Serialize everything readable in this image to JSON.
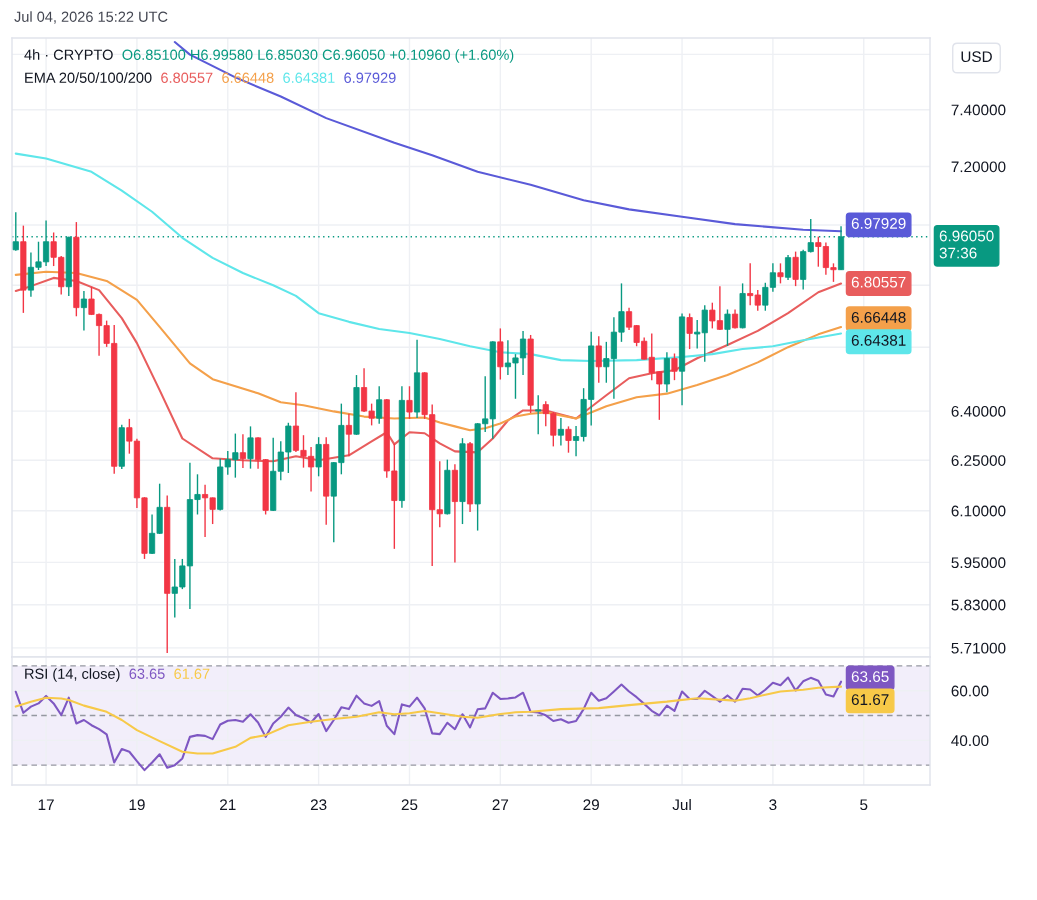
{
  "chart_data": [
    {
      "type": "candlestick",
      "title": "4h · CRYPTO",
      "subtitle": "O6.85100 H6.99580 L6.85030 C6.96050 +0.10960 (+1.60%)",
      "ylabel": "USD",
      "annotations": [
        "Jul 04, 2026 15:22 UTC",
        "EMA 20/50/100/200",
        "37:36"
      ],
      "x": [
        "2026-06-16T08:00",
        "2026-06-16T12:00",
        "2026-06-16T16:00",
        "2026-06-16T20:00",
        "2026-06-17T00:00",
        "2026-06-17T04:00",
        "2026-06-17T08:00",
        "2026-06-17T12:00",
        "2026-06-17T16:00",
        "2026-06-17T20:00",
        "2026-06-18T00:00",
        "2026-06-18T04:00",
        "2026-06-18T08:00",
        "2026-06-18T12:00",
        "2026-06-18T16:00",
        "2026-06-18T20:00",
        "2026-06-19T00:00",
        "2026-06-19T04:00",
        "2026-06-19T08:00",
        "2026-06-19T12:00",
        "2026-06-19T16:00",
        "2026-06-19T20:00",
        "2026-06-20T00:00",
        "2026-06-20T04:00",
        "2026-06-20T08:00",
        "2026-06-20T12:00",
        "2026-06-20T16:00",
        "2026-06-20T20:00",
        "2026-06-21T00:00",
        "2026-06-21T04:00",
        "2026-06-21T08:00",
        "2026-06-21T12:00",
        "2026-06-21T16:00",
        "2026-06-21T20:00",
        "2026-06-22T00:00",
        "2026-06-22T04:00",
        "2026-06-22T08:00",
        "2026-06-22T12:00",
        "2026-06-22T16:00",
        "2026-06-22T20:00",
        "2026-06-23T00:00",
        "2026-06-23T04:00",
        "2026-06-23T08:00",
        "2026-06-23T12:00",
        "2026-06-23T16:00",
        "2026-06-23T20:00",
        "2026-06-24T00:00",
        "2026-06-24T04:00",
        "2026-06-24T08:00",
        "2026-06-24T12:00",
        "2026-06-24T16:00",
        "2026-06-24T20:00",
        "2026-06-25T00:00",
        "2026-06-25T04:00",
        "2026-06-25T08:00",
        "2026-06-25T12:00",
        "2026-06-25T16:00",
        "2026-06-25T20:00",
        "2026-06-26T00:00",
        "2026-06-26T04:00",
        "2026-06-26T08:00",
        "2026-06-26T12:00",
        "2026-06-26T16:00",
        "2026-06-26T20:00",
        "2026-06-27T00:00",
        "2026-06-27T04:00",
        "2026-06-27T08:00",
        "2026-06-27T12:00",
        "2026-06-27T16:00",
        "2026-06-27T20:00",
        "2026-06-28T00:00",
        "2026-06-28T04:00",
        "2026-06-28T08:00",
        "2026-06-28T12:00",
        "2026-06-28T16:00",
        "2026-06-28T20:00",
        "2026-06-29T00:00",
        "2026-06-29T04:00",
        "2026-06-29T08:00",
        "2026-06-29T12:00",
        "2026-06-29T16:00",
        "2026-06-29T20:00",
        "2026-06-30T00:00",
        "2026-06-30T04:00",
        "2026-06-30T08:00",
        "2026-06-30T12:00",
        "2026-06-30T16:00",
        "2026-06-30T20:00",
        "2026-07-01T00:00",
        "2026-07-01T04:00",
        "2026-07-01T08:00",
        "2026-07-01T12:00",
        "2026-07-01T16:00",
        "2026-07-01T20:00",
        "2026-07-02T00:00",
        "2026-07-02T04:00",
        "2026-07-02T08:00",
        "2026-07-02T12:00",
        "2026-07-02T16:00",
        "2026-07-02T20:00",
        "2026-07-03T00:00",
        "2026-07-03T04:00",
        "2026-07-03T08:00",
        "2026-07-03T12:00",
        "2026-07-03T16:00",
        "2026-07-03T20:00",
        "2026-07-04T00:00",
        "2026-07-04T04:00",
        "2026-07-04T08:00",
        "2026-07-04T12:00"
      ],
      "ohlc": [
        [
          6.917,
          7.043,
          6.914,
          6.944
        ],
        [
          6.944,
          6.998,
          6.71,
          6.784
        ],
        [
          6.784,
          6.908,
          6.762,
          6.859
        ],
        [
          6.859,
          6.944,
          6.85,
          6.877
        ],
        [
          6.877,
          7.015,
          6.863,
          6.944
        ],
        [
          6.944,
          6.975,
          6.863,
          6.892
        ],
        [
          6.892,
          6.896,
          6.77,
          6.795
        ],
        [
          6.795,
          6.961,
          6.765,
          6.959
        ],
        [
          6.959,
          7.01,
          6.699,
          6.727
        ],
        [
          6.727,
          6.781,
          6.653,
          6.755
        ],
        [
          6.755,
          6.795,
          6.703,
          6.705
        ],
        [
          6.705,
          6.708,
          6.573,
          6.669
        ],
        [
          6.669,
          6.685,
          6.601,
          6.612
        ],
        [
          6.612,
          6.671,
          6.21,
          6.232
        ],
        [
          6.232,
          6.358,
          6.224,
          6.349
        ],
        [
          6.349,
          6.376,
          6.27,
          6.308
        ],
        [
          6.308,
          6.315,
          6.108,
          6.138
        ],
        [
          6.138,
          6.14,
          5.96,
          5.976
        ],
        [
          5.976,
          6.089,
          5.974,
          6.034
        ],
        [
          6.034,
          6.18,
          6.032,
          6.11
        ],
        [
          6.11,
          6.145,
          5.696,
          5.862
        ],
        [
          5.862,
          5.96,
          5.794,
          5.88
        ],
        [
          5.88,
          5.96,
          5.874,
          5.94
        ],
        [
          5.94,
          6.243,
          5.818,
          6.133
        ],
        [
          6.133,
          6.208,
          6.089,
          6.148
        ],
        [
          6.148,
          6.177,
          6.023,
          6.138
        ],
        [
          6.138,
          6.139,
          6.061,
          6.104
        ],
        [
          6.104,
          6.255,
          6.101,
          6.23
        ],
        [
          6.23,
          6.278,
          6.207,
          6.252
        ],
        [
          6.252,
          6.331,
          6.198,
          6.273
        ],
        [
          6.273,
          6.329,
          6.227,
          6.255
        ],
        [
          6.255,
          6.353,
          6.225,
          6.318
        ],
        [
          6.318,
          6.32,
          6.225,
          6.252
        ],
        [
          6.252,
          6.254,
          6.089,
          6.101
        ],
        [
          6.101,
          6.318,
          6.099,
          6.217
        ],
        [
          6.217,
          6.308,
          6.19,
          6.275
        ],
        [
          6.275,
          6.364,
          6.212,
          6.354
        ],
        [
          6.354,
          6.458,
          6.275,
          6.28
        ],
        [
          6.28,
          6.326,
          6.228,
          6.262
        ],
        [
          6.262,
          6.29,
          6.157,
          6.23
        ],
        [
          6.23,
          6.32,
          6.202,
          6.298
        ],
        [
          6.298,
          6.32,
          6.059,
          6.143
        ],
        [
          6.143,
          6.245,
          6.008,
          6.243
        ],
        [
          6.243,
          6.423,
          6.208,
          6.356
        ],
        [
          6.356,
          6.392,
          6.262,
          6.329
        ],
        [
          6.329,
          6.512,
          6.327,
          6.473
        ],
        [
          6.473,
          6.533,
          6.397,
          6.4
        ],
        [
          6.4,
          6.423,
          6.356,
          6.378
        ],
        [
          6.378,
          6.477,
          6.361,
          6.435
        ],
        [
          6.435,
          6.437,
          6.198,
          6.218
        ],
        [
          6.218,
          6.3,
          5.989,
          6.13
        ],
        [
          6.13,
          6.477,
          6.109,
          6.433
        ],
        [
          6.433,
          6.477,
          6.376,
          6.397
        ],
        [
          6.397,
          6.624,
          6.379,
          6.519
        ],
        [
          6.519,
          6.521,
          6.376,
          6.389
        ],
        [
          6.389,
          6.42,
          5.94,
          6.103
        ],
        [
          6.103,
          6.247,
          6.052,
          6.091
        ],
        [
          6.091,
          6.252,
          6.089,
          6.22
        ],
        [
          6.22,
          6.238,
          5.95,
          6.127
        ],
        [
          6.127,
          6.317,
          6.061,
          6.3
        ],
        [
          6.3,
          6.305,
          6.096,
          6.12
        ],
        [
          6.12,
          6.363,
          6.042,
          6.361
        ],
        [
          6.361,
          6.508,
          6.336,
          6.376
        ],
        [
          6.376,
          6.619,
          6.315,
          6.617
        ],
        [
          6.617,
          6.66,
          6.498,
          6.538
        ],
        [
          6.538,
          6.622,
          6.512,
          6.55
        ],
        [
          6.55,
          6.578,
          6.438,
          6.566
        ],
        [
          6.566,
          6.652,
          6.512,
          6.626
        ],
        [
          6.626,
          6.639,
          6.394,
          6.418
        ],
        [
          6.4,
          6.449,
          6.329,
          6.404
        ],
        [
          6.42,
          6.43,
          6.353,
          6.392
        ],
        [
          6.392,
          6.397,
          6.292,
          6.326
        ],
        [
          6.326,
          6.379,
          6.295,
          6.344
        ],
        [
          6.344,
          6.353,
          6.273,
          6.31
        ],
        [
          6.31,
          6.354,
          6.262,
          6.322
        ],
        [
          6.322,
          6.471,
          6.307,
          6.436
        ],
        [
          6.436,
          6.649,
          6.356,
          6.604
        ],
        [
          6.604,
          6.635,
          6.488,
          6.538
        ],
        [
          6.538,
          6.617,
          6.488,
          6.564
        ],
        [
          6.564,
          6.696,
          6.438,
          6.648
        ],
        [
          6.648,
          6.806,
          6.617,
          6.714
        ],
        [
          6.714,
          6.727,
          6.655,
          6.664
        ],
        [
          6.669,
          6.671,
          6.603,
          6.615
        ],
        [
          6.619,
          6.631,
          6.561,
          6.562
        ],
        [
          6.568,
          6.644,
          6.496,
          6.519
        ],
        [
          6.522,
          6.524,
          6.373,
          6.484
        ],
        [
          6.484,
          6.584,
          6.458,
          6.564
        ],
        [
          6.564,
          6.58,
          6.496,
          6.524
        ],
        [
          6.524,
          6.708,
          6.418,
          6.697
        ],
        [
          6.695,
          6.708,
          6.594,
          6.644
        ],
        [
          6.642,
          6.687,
          6.596,
          6.648
        ],
        [
          6.646,
          6.735,
          6.554,
          6.719
        ],
        [
          6.719,
          6.743,
          6.66,
          6.684
        ],
        [
          6.685,
          6.797,
          6.655,
          6.657
        ],
        [
          6.657,
          6.721,
          6.604,
          6.706
        ],
        [
          6.706,
          6.721,
          6.66,
          6.662
        ],
        [
          6.662,
          6.806,
          6.66,
          6.773
        ],
        [
          6.773,
          6.872,
          6.735,
          6.766
        ],
        [
          6.768,
          6.784,
          6.717,
          6.735
        ],
        [
          6.735,
          6.808,
          6.717,
          6.793
        ],
        [
          6.793,
          6.872,
          6.779,
          6.841
        ],
        [
          6.841,
          6.872,
          6.806,
          6.828
        ],
        [
          6.826,
          6.9,
          6.817,
          6.891
        ],
        [
          6.892,
          6.911,
          6.797,
          6.819
        ],
        [
          6.819,
          6.917,
          6.786,
          6.911
        ],
        [
          6.911,
          7.02,
          6.908,
          6.941
        ],
        [
          6.941,
          6.961,
          6.861,
          6.928
        ],
        [
          6.928,
          6.941,
          6.834,
          6.858
        ],
        [
          6.858,
          6.872,
          6.811,
          6.851
        ],
        [
          6.851,
          6.9958,
          6.8503,
          6.9605
        ]
      ],
      "colors": [
        "#089981",
        "#f23645",
        "#089981",
        "#089981",
        "#089981",
        "#f23645",
        "#f23645",
        "#089981",
        "#f23645",
        "#089981",
        "#f23645",
        "#f23645",
        "#f23645",
        "#f23645",
        "#089981",
        "#f23645",
        "#f23645",
        "#f23645",
        "#089981",
        "#089981",
        "#f23645",
        "#089981",
        "#089981",
        "#089981",
        "#089981",
        "#f23645",
        "#f23645",
        "#089981",
        "#089981",
        "#089981",
        "#f23645",
        "#089981",
        "#f23645",
        "#f23645",
        "#089981",
        "#089981",
        "#089981",
        "#f23645",
        "#f23645",
        "#f23645",
        "#089981",
        "#f23645",
        "#089981",
        "#089981",
        "#f23645",
        "#089981",
        "#f23645",
        "#f23645",
        "#089981",
        "#f23645",
        "#f23645",
        "#089981",
        "#f23645",
        "#089981",
        "#f23645",
        "#f23645",
        "#f23645",
        "#089981",
        "#f23645",
        "#089981",
        "#f23645",
        "#089981",
        "#089981",
        "#089981",
        "#f23645",
        "#089981",
        "#089981",
        "#089981",
        "#f23645",
        "#089981",
        "#f23645",
        "#f23645",
        "#089981",
        "#f23645",
        "#089981",
        "#089981",
        "#089981",
        "#f23645",
        "#089981",
        "#089981",
        "#089981",
        "#f23645",
        "#f23645",
        "#f23645",
        "#f23645",
        "#f23645",
        "#089981",
        "#f23645",
        "#089981",
        "#f23645",
        "#089981",
        "#089981",
        "#f23645",
        "#f23645",
        "#089981",
        "#f23645",
        "#089981",
        "#f23645",
        "#f23645",
        "#089981",
        "#089981",
        "#f23645",
        "#089981",
        "#f23645",
        "#089981",
        "#089981",
        "#f23645",
        "#f23645",
        "#f23645",
        "#089981"
      ],
      "series": [
        {
          "type": "line",
          "color": "#e85d5d",
          "x": [
            "2026-06-16T08:00",
            "2026-06-16T16:00",
            "2026-06-17T04:00",
            "2026-06-17T16:00",
            "2026-06-18T04:00",
            "2026-06-18T16:00",
            "2026-06-19T00:00",
            "2026-06-19T12:00",
            "2026-06-20T00:00",
            "2026-06-20T16:00",
            "2026-06-21T08:00",
            "2026-06-22T00:00",
            "2026-06-22T12:00",
            "2026-06-23T00:00",
            "2026-06-23T16:00",
            "2026-06-24T04:00",
            "2026-06-24T12:00",
            "2026-06-24T16:00",
            "2026-06-25T00:00",
            "2026-06-25T08:00",
            "2026-06-25T16:00",
            "2026-06-26T00:00",
            "2026-06-26T12:00",
            "2026-06-26T20:00",
            "2026-06-27T04:00",
            "2026-06-27T12:00",
            "2026-06-28T00:00",
            "2026-06-28T16:00",
            "2026-06-29T08:00",
            "2026-06-29T20:00",
            "2026-06-30T08:00",
            "2026-06-30T20:00",
            "2026-07-01T08:00",
            "2026-07-02T00:00",
            "2026-07-02T16:00",
            "2026-07-03T08:00",
            "2026-07-04T00:00",
            "2026-07-04T12:00"
          ],
          "values": [
            6.781,
            6.797,
            6.824,
            6.814,
            6.784,
            6.693,
            6.613,
            6.465,
            6.316,
            6.256,
            6.25,
            6.247,
            6.262,
            6.25,
            6.265,
            6.307,
            6.335,
            6.298,
            6.335,
            6.332,
            6.301,
            6.277,
            6.274,
            6.316,
            6.371,
            6.402,
            6.402,
            6.377,
            6.449,
            6.502,
            6.518,
            6.527,
            6.565,
            6.607,
            6.652,
            6.709,
            6.777,
            6.80557
          ],
          "value_labels": [
            null,
            null,
            null,
            null,
            null,
            null,
            null,
            null,
            null,
            null,
            null,
            null,
            null,
            null,
            null,
            null,
            null,
            null,
            null,
            null,
            null,
            null,
            null,
            null,
            null,
            null,
            null,
            null,
            null,
            null,
            null,
            null,
            null,
            null,
            null,
            null,
            null,
            "6.80557"
          ]
        },
        {
          "type": "line",
          "color": "#f4a04a",
          "x": [
            "2026-06-16T08:00",
            "2026-06-17T00:00",
            "2026-06-17T16:00",
            "2026-06-18T08:00",
            "2026-06-19T00:00",
            "2026-06-19T12:00",
            "2026-06-20T04:00",
            "2026-06-20T16:00",
            "2026-06-21T16:00",
            "2026-06-22T04:00",
            "2026-06-22T16:00",
            "2026-06-23T08:00",
            "2026-06-24T00:00",
            "2026-06-24T16:00",
            "2026-06-25T08:00",
            "2026-06-25T16:00",
            "2026-06-26T00:00",
            "2026-06-26T08:00",
            "2026-06-26T16:00",
            "2026-06-27T00:00",
            "2026-06-27T08:00",
            "2026-06-27T16:00",
            "2026-06-28T00:00",
            "2026-06-28T16:00",
            "2026-06-29T08:00",
            "2026-06-30T00:00",
            "2026-06-30T16:00",
            "2026-07-01T08:00",
            "2026-07-02T00:00",
            "2026-07-02T16:00",
            "2026-07-03T08:00",
            "2026-07-04T00:00",
            "2026-07-04T12:00"
          ],
          "values": [
            6.834,
            6.844,
            6.84,
            6.814,
            6.752,
            6.665,
            6.549,
            6.499,
            6.455,
            6.427,
            6.418,
            6.399,
            6.383,
            6.377,
            6.38,
            6.365,
            6.353,
            6.341,
            6.347,
            6.362,
            6.383,
            6.392,
            6.396,
            6.377,
            6.415,
            6.443,
            6.454,
            6.481,
            6.512,
            6.552,
            6.6,
            6.641,
            6.66448
          ],
          "value_labels": [
            null,
            null,
            null,
            null,
            null,
            null,
            null,
            null,
            null,
            null,
            null,
            null,
            null,
            null,
            null,
            null,
            null,
            null,
            null,
            null,
            null,
            null,
            null,
            null,
            null,
            null,
            null,
            null,
            null,
            null,
            null,
            null,
            "6.66448"
          ]
        },
        {
          "type": "line",
          "color": "#5ee6ea",
          "x": [
            "2026-06-16T08:00",
            "2026-06-17T00:00",
            "2026-06-18T00:00",
            "2026-06-18T16:00",
            "2026-06-19T08:00",
            "2026-06-20T00:00",
            "2026-06-20T16:00",
            "2026-06-21T08:00",
            "2026-06-22T00:00",
            "2026-06-22T12:00",
            "2026-06-23T00:00",
            "2026-06-23T16:00",
            "2026-06-24T08:00",
            "2026-06-25T00:00",
            "2026-06-25T16:00",
            "2026-06-26T08:00",
            "2026-06-27T00:00",
            "2026-06-27T16:00",
            "2026-06-28T08:00",
            "2026-06-29T00:00",
            "2026-06-30T00:00",
            "2026-07-01T00:00",
            "2026-07-01T16:00",
            "2026-07-02T08:00",
            "2026-07-03T00:00",
            "2026-07-03T16:00",
            "2026-07-04T12:00"
          ],
          "values": [
            7.245,
            7.228,
            7.182,
            7.117,
            7.045,
            6.957,
            6.89,
            6.84,
            6.8,
            6.765,
            6.709,
            6.681,
            6.658,
            6.645,
            6.626,
            6.603,
            6.584,
            6.578,
            6.559,
            6.556,
            6.559,
            6.569,
            6.578,
            6.594,
            6.603,
            6.622,
            6.64381
          ],
          "value_labels": [
            null,
            null,
            null,
            null,
            null,
            null,
            null,
            null,
            null,
            null,
            null,
            null,
            null,
            null,
            null,
            null,
            null,
            null,
            null,
            null,
            null,
            null,
            null,
            null,
            null,
            null,
            "6.64381"
          ]
        },
        {
          "type": "line",
          "color": "#5a5ad8",
          "x": [
            "2026-06-19T20:00",
            "2026-06-20T04:00",
            "2026-06-21T04:00",
            "2026-06-22T04:00",
            "2026-06-23T04:00",
            "2026-06-24T16:00",
            "2026-06-25T12:00",
            "2026-06-26T12:00",
            "2026-06-27T16:00",
            "2026-06-28T20:00",
            "2026-06-29T20:00",
            "2026-07-01T00:00",
            "2026-07-02T04:00",
            "2026-07-03T16:00",
            "2026-07-04T12:00"
          ],
          "values": [
            7.645,
            7.599,
            7.516,
            7.447,
            7.37,
            7.283,
            7.239,
            7.182,
            7.137,
            7.084,
            7.053,
            7.028,
            7.003,
            6.984,
            6.97929
          ],
          "value_labels": [
            null,
            null,
            null,
            null,
            null,
            null,
            null,
            null,
            null,
            null,
            null,
            null,
            null,
            null,
            "6.97929"
          ]
        }
      ],
      "ref_lines": [
        {
          "axis": "y",
          "value": 6.9605,
          "label": "6.96050",
          "color": "#089981",
          "line_style": "dotted"
        }
      ],
      "log": true,
      "xlim": [
        "2026-06-16T06:00",
        "2026-07-06T11:00"
      ],
      "ylim": [
        5.685,
        7.66
      ],
      "xticks": [
        {
          "value": "2026-06-17",
          "label": null
        },
        {
          "value": "2026-06-19",
          "label": null
        },
        {
          "value": "2026-06-21",
          "label": null
        },
        {
          "value": "2026-06-23",
          "label": null
        },
        {
          "value": "2026-06-25",
          "label": null
        },
        {
          "value": "2026-06-27",
          "label": null
        },
        {
          "value": "2026-06-29",
          "label": null
        },
        {
          "value": "2026-07-01",
          "label": null
        },
        {
          "value": "2026-07-03",
          "label": null
        },
        {
          "value": "2026-07-05",
          "label": null
        }
      ],
      "yticks": [
        {
          "value": 5.71,
          "label": "5.71000"
        },
        {
          "value": 5.83,
          "label": "5.83000"
        },
        {
          "value": 5.95,
          "label": "5.95000"
        },
        {
          "value": 6.1,
          "label": "6.10000"
        },
        {
          "value": 6.25,
          "label": "6.25000"
        },
        {
          "value": 6.4,
          "label": "6.40000"
        },
        {
          "value": 6.6,
          "label": null
        },
        {
          "value": 6.8,
          "label": null
        },
        {
          "value": 7.0,
          "label": null
        },
        {
          "value": 7.2,
          "label": "7.20000"
        },
        {
          "value": 7.4,
          "label": "7.40000"
        },
        {
          "value": 7.6,
          "label": null
        }
      ],
      "grid": true,
      "tick_labels": "y"
    },
    {
      "type": "line",
      "title": "RSI (14, close)",
      "x": [
        "2026-06-16T08:00",
        "2026-06-16T12:00",
        "2026-06-16T16:00",
        "2026-06-16T20:00",
        "2026-06-17T00:00",
        "2026-06-17T04:00",
        "2026-06-17T08:00",
        "2026-06-17T12:00",
        "2026-06-17T16:00",
        "2026-06-17T20:00",
        "2026-06-18T00:00",
        "2026-06-18T04:00",
        "2026-06-18T08:00",
        "2026-06-18T12:00",
        "2026-06-18T16:00",
        "2026-06-18T20:00",
        "2026-06-19T00:00",
        "2026-06-19T04:00",
        "2026-06-19T08:00",
        "2026-06-19T12:00",
        "2026-06-19T16:00",
        "2026-06-19T20:00",
        "2026-06-20T00:00",
        "2026-06-20T04:00",
        "2026-06-20T08:00",
        "2026-06-20T12:00",
        "2026-06-20T16:00",
        "2026-06-20T20:00",
        "2026-06-21T00:00",
        "2026-06-21T04:00",
        "2026-06-21T08:00",
        "2026-06-21T12:00",
        "2026-06-21T16:00",
        "2026-06-21T20:00",
        "2026-06-22T00:00",
        "2026-06-22T04:00",
        "2026-06-22T08:00",
        "2026-06-22T12:00",
        "2026-06-22T16:00",
        "2026-06-22T20:00",
        "2026-06-23T00:00",
        "2026-06-23T04:00",
        "2026-06-23T08:00",
        "2026-06-23T12:00",
        "2026-06-23T16:00",
        "2026-06-23T20:00",
        "2026-06-24T00:00",
        "2026-06-24T04:00",
        "2026-06-24T08:00",
        "2026-06-24T12:00",
        "2026-06-24T16:00",
        "2026-06-24T20:00",
        "2026-06-25T00:00",
        "2026-06-25T04:00",
        "2026-06-25T08:00",
        "2026-06-25T12:00",
        "2026-06-25T16:00",
        "2026-06-25T20:00",
        "2026-06-26T00:00",
        "2026-06-26T04:00",
        "2026-06-26T08:00",
        "2026-06-26T12:00",
        "2026-06-26T16:00",
        "2026-06-26T20:00",
        "2026-06-27T00:00",
        "2026-06-27T04:00",
        "2026-06-27T08:00",
        "2026-06-27T12:00",
        "2026-06-27T16:00",
        "2026-06-27T20:00",
        "2026-06-28T00:00",
        "2026-06-28T04:00",
        "2026-06-28T08:00",
        "2026-06-28T12:00",
        "2026-06-28T16:00",
        "2026-06-28T20:00",
        "2026-06-29T00:00",
        "2026-06-29T04:00",
        "2026-06-29T08:00",
        "2026-06-29T12:00",
        "2026-06-29T16:00",
        "2026-06-29T20:00",
        "2026-06-30T00:00",
        "2026-06-30T04:00",
        "2026-06-30T08:00",
        "2026-06-30T12:00",
        "2026-06-30T16:00",
        "2026-06-30T20:00",
        "2026-07-01T00:00",
        "2026-07-01T04:00",
        "2026-07-01T08:00",
        "2026-07-01T12:00",
        "2026-07-01T16:00",
        "2026-07-01T20:00",
        "2026-07-02T00:00",
        "2026-07-02T04:00",
        "2026-07-02T08:00",
        "2026-07-02T12:00",
        "2026-07-02T16:00",
        "2026-07-02T20:00",
        "2026-07-03T00:00",
        "2026-07-03T04:00",
        "2026-07-03T08:00",
        "2026-07-03T12:00",
        "2026-07-03T16:00",
        "2026-07-03T20:00",
        "2026-07-04T00:00",
        "2026-07-04T04:00",
        "2026-07-04T08:00",
        "2026-07-04T12:00"
      ],
      "series": [
        {
          "color": "#7e57c2",
          "values": [
            59.6,
            51.1,
            53.6,
            54.9,
            57.9,
            54.9,
            50.2,
            57.2,
            46.8,
            48.2,
            46.1,
            44.5,
            42.4,
            31.1,
            36.5,
            35.4,
            31.6,
            28.0,
            31.1,
            34.4,
            29.0,
            30.0,
            32.7,
            41.4,
            42.1,
            41.8,
            40.5,
            46.4,
            47.9,
            48.2,
            47.5,
            50.5,
            47.2,
            41.4,
            46.8,
            49.5,
            53.2,
            50.2,
            48.9,
            47.2,
            50.6,
            43.7,
            48.2,
            53.3,
            52.6,
            58.0,
            54.9,
            53.9,
            55.8,
            45.9,
            42.5,
            54.5,
            53.6,
            57.2,
            52.9,
            42.8,
            42.5,
            47.1,
            44.5,
            50.5,
            45.2,
            52.5,
            52.9,
            59.2,
            56.7,
            56.9,
            57.3,
            59.2,
            51.5,
            51.2,
            50.1,
            47.8,
            48.5,
            47.1,
            47.8,
            52.6,
            59.2,
            56.0,
            57.0,
            59.7,
            62.5,
            59.7,
            57.4,
            54.7,
            51.9,
            50.1,
            54.0,
            51.9,
            59.7,
            56.7,
            56.7,
            60.0,
            57.8,
            55.6,
            58.1,
            55.6,
            60.8,
            60.5,
            58.1,
            60.4,
            63.2,
            62.2,
            65.3,
            60.1,
            63.8,
            65.2,
            64.0,
            58.5,
            57.7,
            63.65
          ],
          "value_labels": [
            null,
            null,
            null,
            null,
            null,
            null,
            null,
            null,
            null,
            null,
            null,
            null,
            null,
            null,
            null,
            null,
            null,
            null,
            null,
            null,
            null,
            null,
            null,
            null,
            null,
            null,
            null,
            null,
            null,
            null,
            null,
            null,
            null,
            null,
            null,
            null,
            null,
            null,
            null,
            null,
            null,
            null,
            null,
            null,
            null,
            null,
            null,
            null,
            null,
            null,
            null,
            null,
            null,
            null,
            null,
            null,
            null,
            null,
            null,
            null,
            null,
            null,
            null,
            null,
            null,
            null,
            null,
            null,
            null,
            null,
            null,
            null,
            null,
            null,
            null,
            null,
            null,
            null,
            null,
            null,
            null,
            null,
            null,
            null,
            null,
            null,
            null,
            null,
            null,
            null,
            null,
            null,
            null,
            null,
            null,
            null,
            null,
            null,
            null,
            null,
            null,
            null,
            null,
            null,
            null,
            null,
            null,
            null,
            null,
            "63.65"
          ]
        },
        {
          "color": "#f7c948",
          "x": [
            "2026-06-16T08:00",
            "2026-06-16T16:00",
            "2026-06-17T00:00",
            "2026-06-17T08:00",
            "2026-06-17T12:00",
            "2026-06-17T20:00",
            "2026-06-18T08:00",
            "2026-06-18T16:00",
            "2026-06-19T00:00",
            "2026-06-19T12:00",
            "2026-06-20T00:00",
            "2026-06-20T08:00",
            "2026-06-20T16:00",
            "2026-06-21T04:00",
            "2026-06-21T12:00",
            "2026-06-21T20:00",
            "2026-06-22T08:00",
            "2026-06-22T20:00",
            "2026-06-23T08:00",
            "2026-06-23T20:00",
            "2026-06-24T08:00",
            "2026-06-24T16:00",
            "2026-06-25T00:00",
            "2026-06-25T08:00",
            "2026-06-25T16:00",
            "2026-06-26T04:00",
            "2026-06-26T12:00",
            "2026-06-27T00:00",
            "2026-06-27T08:00",
            "2026-06-27T16:00",
            "2026-06-28T08:00",
            "2026-06-29T04:00",
            "2026-06-29T20:00",
            "2026-06-30T16:00",
            "2026-07-01T08:00",
            "2026-07-02T04:00",
            "2026-07-02T12:00",
            "2026-07-02T20:00",
            "2026-07-03T04:00",
            "2026-07-03T16:00",
            "2026-07-04T00:00",
            "2026-07-04T12:00"
          ],
          "values": [
            53.6,
            55.6,
            57.2,
            56.9,
            56.3,
            54.0,
            51.5,
            48.2,
            44.1,
            39.7,
            35.4,
            34.7,
            34.7,
            37.4,
            41.0,
            42.1,
            46.1,
            47.5,
            48.6,
            49.5,
            51.3,
            50.5,
            50.9,
            51.8,
            50.9,
            49.5,
            49.1,
            50.6,
            51.3,
            51.5,
            52.6,
            53.0,
            54.2,
            55.6,
            57.0,
            56.0,
            57.0,
            58.4,
            59.7,
            60.4,
            61.2,
            61.67
          ],
          "value_labels": [
            null,
            null,
            null,
            null,
            null,
            null,
            null,
            null,
            null,
            null,
            null,
            null,
            null,
            null,
            null,
            null,
            null,
            null,
            null,
            null,
            null,
            null,
            null,
            null,
            null,
            null,
            null,
            null,
            null,
            null,
            null,
            null,
            null,
            null,
            null,
            null,
            null,
            null,
            null,
            null,
            null,
            "61.67"
          ]
        }
      ],
      "bands": [
        {
          "axis": "y",
          "from": 30,
          "to": 70,
          "color": "#f2eefa"
        }
      ],
      "ref_lines": [
        {
          "axis": "y",
          "value": 70,
          "color": "#9598a1",
          "line_style": "dashed"
        },
        {
          "axis": "y",
          "value": 50,
          "color": "#9598a1",
          "line_style": "dashed"
        },
        {
          "axis": "y",
          "value": 30,
          "color": "#9598a1",
          "line_style": "dashed"
        }
      ],
      "xlim": [
        "2026-06-16T06:00",
        "2026-07-06T11:00"
      ],
      "ylim": [
        22,
        73.6
      ],
      "xticks": [
        {
          "value": "2026-06-17",
          "label": "17"
        },
        {
          "value": "2026-06-19",
          "label": "19"
        },
        {
          "value": "2026-06-21",
          "label": "21"
        },
        {
          "value": "2026-06-23",
          "label": "23"
        },
        {
          "value": "2026-06-25",
          "label": "25"
        },
        {
          "value": "2026-06-27",
          "label": "27"
        },
        {
          "value": "2026-06-29",
          "label": "29"
        },
        {
          "value": "2026-07-01",
          "label": "Jul"
        },
        {
          "value": "2026-07-03",
          "label": "3"
        },
        {
          "value": "2026-07-05",
          "label": "5"
        }
      ],
      "yticks": [
        {
          "value": 40,
          "label": "40.00"
        },
        {
          "value": 60,
          "label": "60.00"
        }
      ],
      "grid": true
    }
  ]
}
